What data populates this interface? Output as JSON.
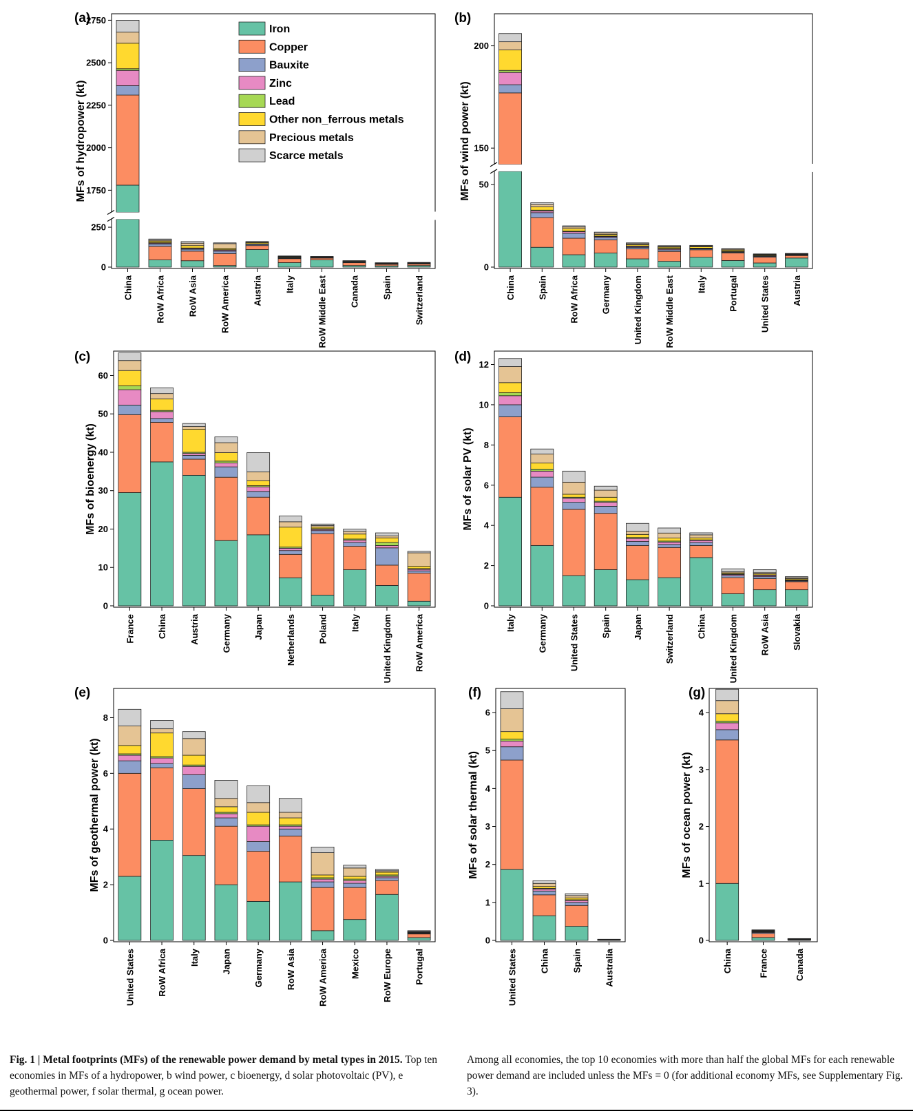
{
  "caption": {
    "fig_label": "Fig. 1 | Metal footprints (MFs) of the renewable power demand by metal types in 2015.",
    "fig_text": "Top ten economies in MFs of a hydropower, b wind power, c bioenergy, d solar photovoltaic (PV), e geothermal power, f solar thermal, g ocean power.",
    "right_text": "Among all economies, the top 10 economies with more than half the global MFs for each renewable power demand are included unless the MFs = 0 (for additional economy MFs, see Supplementary Fig. 3)."
  },
  "legend": [
    {
      "name": "Iron",
      "color": "#66c2a5"
    },
    {
      "name": "Copper",
      "color": "#fc8d62"
    },
    {
      "name": "Bauxite",
      "color": "#8da0cb"
    },
    {
      "name": "Zinc",
      "color": "#e78ac3"
    },
    {
      "name": "Lead",
      "color": "#a6d854"
    },
    {
      "name": "Other non_ferrous metals",
      "color": "#ffd92f"
    },
    {
      "name": "Precious metals",
      "color": "#e5c494"
    },
    {
      "name": "Scarce metals",
      "color": "#d0d0d0"
    }
  ],
  "chart_data": [
    {
      "panel": "(a)",
      "type": "bar",
      "stacked": true,
      "ylabel": "MFs of hydropower (kt)",
      "axis_break": {
        "lower": [
          0,
          300
        ],
        "upper": [
          1620,
          2780
        ]
      },
      "yticks": [
        0,
        250,
        1750,
        2000,
        2250,
        2500,
        2750
      ],
      "categories": [
        "China",
        "RoW Africa",
        "RoW Asia",
        "RoW America",
        "Austria",
        "Italy",
        "RoW Middle East",
        "Canada",
        "Spain",
        "Switzerland"
      ],
      "series": [
        {
          "name": "Iron",
          "values": [
            1780,
            45,
            40,
            10,
            110,
            28,
            45,
            10,
            8,
            10
          ]
        },
        {
          "name": "Copper",
          "values": [
            530,
            85,
            60,
            75,
            25,
            25,
            12,
            18,
            10,
            10
          ]
        },
        {
          "name": "Bauxite",
          "values": [
            55,
            15,
            12,
            15,
            7,
            4,
            2,
            2,
            2,
            2
          ]
        },
        {
          "name": "Zinc",
          "values": [
            90,
            5,
            5,
            7,
            3,
            2,
            1,
            1,
            1,
            1
          ]
        },
        {
          "name": "Lead",
          "values": [
            10,
            3,
            3,
            2,
            1,
            1,
            1,
            0.5,
            0.5,
            0.5
          ]
        },
        {
          "name": "Other non_ferrous metals",
          "values": [
            150,
            10,
            15,
            8,
            8,
            4,
            2,
            2,
            2,
            2
          ]
        },
        {
          "name": "Precious metals",
          "values": [
            65,
            6,
            15,
            30,
            4,
            3,
            2,
            4,
            2,
            2
          ]
        },
        {
          "name": "Scarce metals",
          "values": [
            70,
            7,
            10,
            5,
            2,
            3,
            2,
            3,
            2,
            2
          ]
        }
      ]
    },
    {
      "panel": "(b)",
      "type": "bar",
      "stacked": true,
      "ylabel": "MFs of wind power (kt)",
      "axis_break": {
        "lower": [
          0,
          58
        ],
        "upper": [
          142,
          215
        ]
      },
      "yticks": [
        0,
        50,
        150,
        200
      ],
      "categories": [
        "China",
        "Spain",
        "RoW Africa",
        "Germany",
        "United Kingdom",
        "RoW Middle East",
        "Italy",
        "Portugal",
        "United States",
        "Austria"
      ],
      "series": [
        {
          "name": "Iron",
          "values": [
            142,
            12,
            7.5,
            8.5,
            5,
            3.5,
            6,
            4,
            2.5,
            5.5
          ]
        },
        {
          "name": "Copper",
          "values": [
            35,
            18,
            10,
            8,
            6,
            6,
            4.5,
            4.5,
            3.5,
            1.5
          ]
        },
        {
          "name": "Bauxite",
          "values": [
            4,
            3,
            3,
            1.5,
            1,
            1,
            0.5,
            0.5,
            0.5,
            0.3
          ]
        },
        {
          "name": "Zinc",
          "values": [
            6,
            1,
            1,
            0.5,
            0.5,
            0.5,
            0.3,
            0.3,
            0.3,
            0.2
          ]
        },
        {
          "name": "Lead",
          "values": [
            1,
            0.5,
            0.3,
            0.3,
            0.3,
            0.3,
            0.2,
            0.2,
            0.1,
            0.1
          ]
        },
        {
          "name": "Other non_ferrous metals",
          "values": [
            10,
            2,
            1.5,
            1,
            0.8,
            0.8,
            0.8,
            0.8,
            0.5,
            0.3
          ]
        },
        {
          "name": "Precious metals",
          "values": [
            4,
            1.5,
            1,
            0.8,
            0.6,
            0.5,
            0.5,
            0.5,
            0.3,
            0.2
          ]
        },
        {
          "name": "Scarce metals",
          "values": [
            4,
            1,
            0.7,
            0.6,
            0.5,
            0.4,
            0.4,
            0.4,
            0.3,
            0.2
          ]
        }
      ]
    },
    {
      "panel": "(c)",
      "type": "bar",
      "stacked": true,
      "ylabel": "MFs of bioenergy (kt)",
      "ylim": [
        0,
        66
      ],
      "yticks": [
        0,
        10,
        20,
        30,
        40,
        50,
        60
      ],
      "categories": [
        "France",
        "China",
        "Austria",
        "Germany",
        "Japan",
        "Netherlands",
        "Poland",
        "Italy",
        "United Kingdom",
        "RoW America"
      ],
      "series": [
        {
          "name": "Iron",
          "values": [
            29.5,
            37.5,
            34,
            17,
            18.5,
            7.3,
            2.8,
            9.4,
            5.3,
            1.2
          ]
        },
        {
          "name": "Copper",
          "values": [
            20.3,
            10.3,
            4.2,
            16.5,
            9.8,
            6.1,
            16,
            6.1,
            5.3,
            7.3
          ]
        },
        {
          "name": "Bauxite",
          "values": [
            2.5,
            1,
            1,
            2.7,
            1.5,
            1,
            0.8,
            1,
            4.5,
            0.6
          ]
        },
        {
          "name": "Zinc",
          "values": [
            4,
            1.8,
            0.5,
            1,
            1.2,
            0.6,
            0.3,
            0.6,
            0.6,
            0.4
          ]
        },
        {
          "name": "Lead",
          "values": [
            1,
            0.3,
            0.3,
            0.5,
            0.3,
            0.3,
            0.2,
            0.3,
            0.8,
            0.2
          ]
        },
        {
          "name": "Other non_ferrous metals",
          "values": [
            4,
            3,
            6,
            2.2,
            1.3,
            5.2,
            0.4,
            1.3,
            1.2,
            0.6
          ]
        },
        {
          "name": "Precious metals",
          "values": [
            2.6,
            1.4,
            0.7,
            2.6,
            2.3,
            1.4,
            0.4,
            0.7,
            0.5,
            3.5
          ]
        },
        {
          "name": "Scarce metals",
          "values": [
            2,
            1.5,
            0.8,
            1.5,
            5,
            1.5,
            0.4,
            0.6,
            0.8,
            0.4
          ]
        }
      ]
    },
    {
      "panel": "(d)",
      "type": "bar",
      "stacked": true,
      "ylabel": "MFs of solar PV (kt)",
      "ylim": [
        0,
        12.6
      ],
      "yticks": [
        0,
        2,
        4,
        6,
        8,
        10,
        12
      ],
      "categories": [
        "Italy",
        "Germany",
        "United States",
        "Spain",
        "Japan",
        "Switzerland",
        "China",
        "United Kingdom",
        "RoW Asia",
        "Slovakia"
      ],
      "series": [
        {
          "name": "Iron",
          "values": [
            5.4,
            3,
            1.5,
            1.8,
            1.3,
            1.4,
            2.4,
            0.6,
            0.8,
            0.8
          ]
        },
        {
          "name": "Copper",
          "values": [
            4,
            2.9,
            3.3,
            2.8,
            1.7,
            1.5,
            0.6,
            0.8,
            0.55,
            0.4
          ]
        },
        {
          "name": "Bauxite",
          "values": [
            0.6,
            0.5,
            0.35,
            0.35,
            0.2,
            0.15,
            0.15,
            0.1,
            0.1,
            0.04
          ]
        },
        {
          "name": "Zinc",
          "values": [
            0.45,
            0.3,
            0.2,
            0.2,
            0.15,
            0.12,
            0.1,
            0.06,
            0.06,
            0.03
          ]
        },
        {
          "name": "Lead",
          "values": [
            0.15,
            0.1,
            0.05,
            0.05,
            0.05,
            0.05,
            0.03,
            0.03,
            0.03,
            0.03
          ]
        },
        {
          "name": "Other non_ferrous metals",
          "values": [
            0.5,
            0.3,
            0.15,
            0.2,
            0.15,
            0.15,
            0.1,
            0.05,
            0.05,
            0.05
          ]
        },
        {
          "name": "Precious metals",
          "values": [
            0.8,
            0.45,
            0.6,
            0.35,
            0.15,
            0.25,
            0.15,
            0.05,
            0.06,
            0.05
          ]
        },
        {
          "name": "Scarce metals",
          "values": [
            0.4,
            0.25,
            0.55,
            0.2,
            0.4,
            0.25,
            0.1,
            0.15,
            0.15,
            0.05
          ]
        }
      ]
    },
    {
      "panel": "(e)",
      "type": "bar",
      "stacked": true,
      "ylabel": "MFs of geothermal power (kt)",
      "ylim": [
        0,
        9.0
      ],
      "yticks": [
        0,
        2,
        4,
        6,
        8
      ],
      "categories": [
        "United States",
        "RoW Africa",
        "Italy",
        "Japan",
        "Germany",
        "RoW Asia",
        "RoW America",
        "Mexico",
        "RoW Europe",
        "Portugal"
      ],
      "series": [
        {
          "name": "Iron",
          "values": [
            2.3,
            3.6,
            3.05,
            2,
            1.4,
            2.1,
            0.35,
            0.75,
            1.65,
            0.1
          ]
        },
        {
          "name": "Copper",
          "values": [
            3.7,
            2.6,
            2.4,
            2.1,
            1.8,
            1.65,
            1.55,
            1.15,
            0.5,
            0.13
          ]
        },
        {
          "name": "Bauxite",
          "values": [
            0.45,
            0.15,
            0.5,
            0.3,
            0.35,
            0.25,
            0.2,
            0.15,
            0.1,
            0.02
          ]
        },
        {
          "name": "Zinc",
          "values": [
            0.2,
            0.2,
            0.3,
            0.15,
            0.55,
            0.1,
            0.1,
            0.1,
            0.05,
            0.02
          ]
        },
        {
          "name": "Lead",
          "values": [
            0.05,
            0.05,
            0.05,
            0.05,
            0.05,
            0.05,
            0.05,
            0.05,
            0.05,
            0.01
          ]
        },
        {
          "name": "Other non_ferrous metals",
          "values": [
            0.3,
            0.85,
            0.35,
            0.2,
            0.45,
            0.25,
            0.1,
            0.1,
            0.1,
            0.02
          ]
        },
        {
          "name": "Precious metals",
          "values": [
            0.7,
            0.15,
            0.6,
            0.3,
            0.35,
            0.2,
            0.8,
            0.3,
            0.05,
            0.02
          ]
        },
        {
          "name": "Scarce metals",
          "values": [
            0.6,
            0.3,
            0.25,
            0.65,
            0.6,
            0.5,
            0.2,
            0.1,
            0.05,
            0.03
          ]
        }
      ]
    },
    {
      "panel": "(f)",
      "type": "bar",
      "stacked": true,
      "ylabel": "MFs of solar thermal (kt)",
      "ylim": [
        0,
        6.6
      ],
      "yticks": [
        0,
        1,
        2,
        3,
        4,
        5,
        6
      ],
      "categories": [
        "United States",
        "China",
        "Spain",
        "Australia"
      ],
      "series": [
        {
          "name": "Iron",
          "values": [
            1.87,
            0.65,
            0.37,
            0.01
          ]
        },
        {
          "name": "Copper",
          "values": [
            2.88,
            0.55,
            0.55,
            0.01
          ]
        },
        {
          "name": "Bauxite",
          "values": [
            0.35,
            0.1,
            0.08,
            0.002
          ]
        },
        {
          "name": "Zinc",
          "values": [
            0.15,
            0.05,
            0.05,
            0.002
          ]
        },
        {
          "name": "Lead",
          "values": [
            0.05,
            0.02,
            0.02,
            0.001
          ]
        },
        {
          "name": "Other non_ferrous metals",
          "values": [
            0.2,
            0.05,
            0.05,
            0.002
          ]
        },
        {
          "name": "Precious metals",
          "values": [
            0.6,
            0.08,
            0.06,
            0.002
          ]
        },
        {
          "name": "Scarce metals",
          "values": [
            0.45,
            0.07,
            0.05,
            0.002
          ]
        }
      ]
    },
    {
      "panel": "(g)",
      "type": "bar",
      "stacked": true,
      "ylabel": "MFs of ocean power (kt)",
      "ylim": [
        0,
        4.4
      ],
      "yticks": [
        0,
        1,
        2,
        3,
        4
      ],
      "categories": [
        "China",
        "France",
        "Canada"
      ],
      "series": [
        {
          "name": "Iron",
          "values": [
            1.0,
            0.05,
            0.01
          ]
        },
        {
          "name": "Copper",
          "values": [
            2.52,
            0.07,
            0.01
          ]
        },
        {
          "name": "Bauxite",
          "values": [
            0.18,
            0.02,
            0.003
          ]
        },
        {
          "name": "Zinc",
          "values": [
            0.12,
            0.01,
            0.002
          ]
        },
        {
          "name": "Lead",
          "values": [
            0.03,
            0.005,
            0.001
          ]
        },
        {
          "name": "Other non_ferrous metals",
          "values": [
            0.13,
            0.01,
            0.002
          ]
        },
        {
          "name": "Precious metals",
          "values": [
            0.23,
            0.01,
            0.002
          ]
        },
        {
          "name": "Scarce metals",
          "values": [
            0.2,
            0.01,
            0.002
          ]
        }
      ]
    }
  ]
}
